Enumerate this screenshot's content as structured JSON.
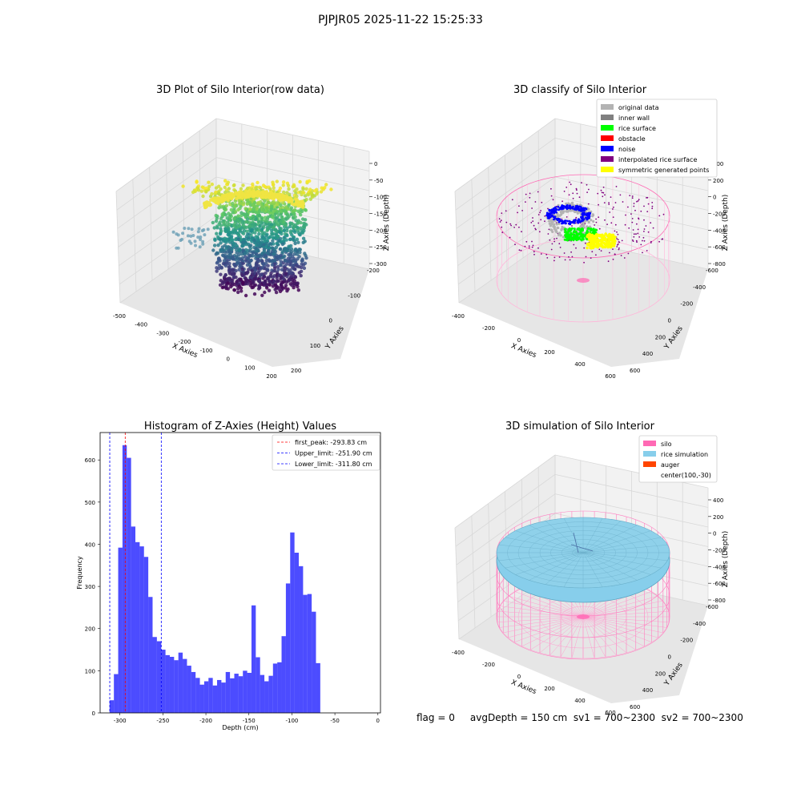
{
  "suptitle": "PJPJR05 2025-11-22 15:25:33",
  "footer": "flag = 0     avgDepth = 150 cm  sv1 = 700~2300  sv2 = 700~2300",
  "chart_data": [
    {
      "type": "scatter",
      "subtype": "3d",
      "title": "3D Plot of Silo Interior(row data)",
      "xlabel": "X Axies",
      "ylabel": "Y Axies",
      "zlabel": "Z Axies (Depth)",
      "xticks": [
        "-500",
        "-400",
        "-300",
        "-200",
        "-100",
        "0",
        "100",
        "200"
      ],
      "yticks": [
        "-200",
        "-100",
        "0",
        "100",
        "200"
      ],
      "zticks": [
        "0",
        "-50",
        "-100",
        "-150",
        "-200",
        "-250",
        "-300"
      ],
      "colormap": "viridis",
      "grid": true
    },
    {
      "type": "scatter",
      "subtype": "3d",
      "title": "3D classify of Silo Interior",
      "xlabel": "X Axies",
      "ylabel": "Y Axies",
      "zlabel": "Z Axies (Depth)",
      "xticks": [
        "-400",
        "-200",
        "0",
        "200",
        "400",
        "600"
      ],
      "yticks": [
        "-600",
        "-400",
        "-200",
        "0",
        "200",
        "400",
        "600"
      ],
      "zticks": [
        "400",
        "200",
        "0",
        "-200",
        "-400",
        "-600",
        "-800"
      ],
      "legend_position": "top-right",
      "legend": [
        {
          "label": "original data",
          "color": "#b3b3b3"
        },
        {
          "label": "inner wall",
          "color": "#808080"
        },
        {
          "label": "rice surface",
          "color": "#00ff00"
        },
        {
          "label": "obstacle",
          "color": "#ff0000"
        },
        {
          "label": "noise",
          "color": "#0000ff"
        },
        {
          "label": "interpolated rice surface",
          "color": "#800080"
        },
        {
          "label": "symmetric generated points",
          "color": "#ffff00"
        }
      ],
      "grid": true
    },
    {
      "type": "bar",
      "subtype": "histogram",
      "title": "Histogram of Z-Axies (Height) Values",
      "xlabel": "Depth (cm)",
      "ylabel": "Frequency",
      "xlim": [
        -323,
        3
      ],
      "ylim": [
        0,
        665
      ],
      "xticks": [
        -300,
        -250,
        -200,
        -150,
        -100,
        -50,
        0
      ],
      "yticks": [
        0,
        100,
        200,
        300,
        400,
        500,
        600
      ],
      "bin_start": -312,
      "bin_width": 5,
      "values": [
        30,
        92,
        392,
        635,
        605,
        442,
        405,
        395,
        370,
        275,
        180,
        170,
        150,
        137,
        133,
        125,
        143,
        128,
        112,
        97,
        83,
        67,
        75,
        83,
        65,
        78,
        72,
        97,
        82,
        93,
        87,
        100,
        95,
        255,
        132,
        90,
        75,
        88,
        117,
        120,
        182,
        307,
        428,
        380,
        348,
        280,
        282,
        240,
        118
      ],
      "bar_color": "#0000ff",
      "vlines": [
        {
          "x": -293.83,
          "color": "#ff0000",
          "label": "first_peak: -293.83 cm"
        },
        {
          "x": -251.9,
          "color": "#0000ff",
          "label": "Upper_limit: -251.90 cm"
        },
        {
          "x": -311.8,
          "color": "#0000ff",
          "label": "Lower_limit: -311.80 cm"
        }
      ],
      "legend_position": "top-right"
    },
    {
      "type": "scatter",
      "subtype": "3d-surface",
      "title": "3D simulation of Silo Interior",
      "xlabel": "X Axies",
      "ylabel": "Y Axies",
      "zlabel": "Z Axies (Depth)",
      "xticks": [
        "-400",
        "-200",
        "0",
        "200",
        "400",
        "600"
      ],
      "yticks": [
        "-600",
        "-400",
        "-200",
        "0",
        "200",
        "400",
        "600"
      ],
      "zticks": [
        "400",
        "200",
        "0",
        "-200",
        "-400",
        "-600",
        "-800"
      ],
      "legend_position": "top-right",
      "legend": [
        {
          "label": "silo",
          "color": "#ff69b4"
        },
        {
          "label": "rice simulation",
          "color": "#87ceeb"
        },
        {
          "label": "auger",
          "color": "#ff4500"
        },
        {
          "label": "center(100,-30)",
          "color": ""
        }
      ],
      "grid": true
    }
  ]
}
